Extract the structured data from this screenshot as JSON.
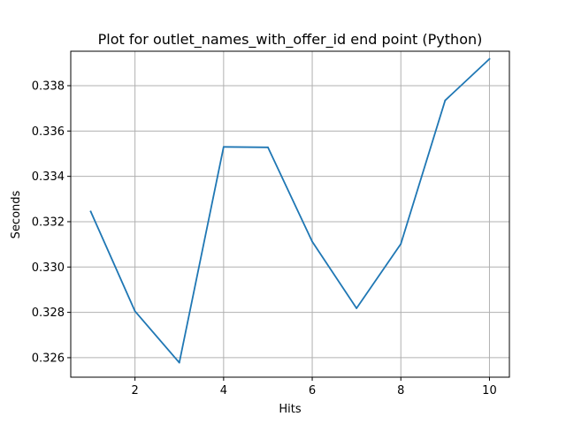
{
  "chart_data": {
    "type": "line",
    "title": "Plot for outlet_names_with_offer_id end point (Python)",
    "xlabel": "Hits",
    "ylabel": "Seconds",
    "x": [
      1,
      2,
      3,
      4,
      5,
      6,
      7,
      8,
      9,
      10
    ],
    "series": [
      {
        "values": [
          0.33245,
          0.32805,
          0.32578,
          0.3353,
          0.33528,
          0.33112,
          0.32818,
          0.33102,
          0.33735,
          0.33918
        ],
        "color": "#1f77b4"
      }
    ],
    "xlim": [
      0.55,
      10.45
    ],
    "ylim": [
      0.32514,
      0.33952
    ],
    "xticks": [
      2,
      4,
      6,
      8,
      10
    ],
    "yticks": [
      0.326,
      0.328,
      0.33,
      0.332,
      0.334,
      0.336,
      0.338
    ],
    "xtick_labels": [
      "2",
      "4",
      "6",
      "8",
      "10"
    ],
    "ytick_labels": [
      "0.326",
      "0.328",
      "0.330",
      "0.332",
      "0.334",
      "0.336",
      "0.338"
    ],
    "grid": true,
    "colors": {
      "grid": "#b0b0b0",
      "axes": "#000000",
      "line": "#1f77b4"
    }
  }
}
